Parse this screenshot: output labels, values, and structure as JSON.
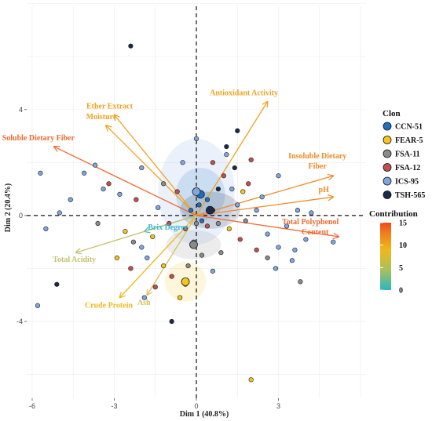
{
  "chart_data": {
    "type": "scatter",
    "subtype": "PCA biplot",
    "xlabel": "Dim 1 (40.8%)",
    "ylabel": "Dim 2 (20.4%)",
    "xlim": [
      -6.2,
      6.2
    ],
    "ylim": [
      -6.9,
      7.9
    ],
    "x_ticks": [
      -6,
      -3,
      0,
      3
    ],
    "y_ticks": [
      -4,
      0,
      4
    ],
    "grid": true,
    "legend": {
      "title": "Clon",
      "position": "right",
      "entries": [
        {
          "name": "CCN-51",
          "color": "#1f6fbf"
        },
        {
          "name": "FEAR-5",
          "color": "#f5c518"
        },
        {
          "name": "FSA-11",
          "color": "#8a8a8a"
        },
        {
          "name": "FSA-12",
          "color": "#c0504d"
        },
        {
          "name": "ICS-95",
          "color": "#7ea6e0"
        },
        {
          "name": "TSH-565",
          "color": "#1b2a49"
        }
      ]
    },
    "contribution_scale": {
      "title": "Contribution",
      "min": 0,
      "max": 15,
      "ticks": [
        0,
        5,
        10,
        15
      ],
      "colors": [
        "#2ab7c2",
        "#a9c05c",
        "#f0b81b",
        "#f07c1c",
        "#ef4a1c"
      ]
    },
    "variables": [
      {
        "label": "Antioxidant Activity",
        "x": 2.6,
        "y": 4.3,
        "contribution": 11,
        "color": "#f0a21f"
      },
      {
        "label": "Ether Extract",
        "x": -3.0,
        "y": 3.8,
        "contribution": 11,
        "color": "#f0a21f"
      },
      {
        "label": "Moisture",
        "x": -3.3,
        "y": 3.4,
        "contribution": 11,
        "color": "#f0a21f"
      },
      {
        "label": "Soluble Dietary Fiber",
        "x": -5.2,
        "y": 2.6,
        "contribution": 14,
        "color": "#ef6a30"
      },
      {
        "label": "Insoluble Dietary Fiber",
        "x": 5.0,
        "y": 1.5,
        "contribution": 12,
        "color": "#f08a25"
      },
      {
        "label": "pH",
        "x": 5.0,
        "y": 0.7,
        "contribution": 12,
        "color": "#f08a25"
      },
      {
        "label": "Total Polyphenol Content",
        "x": 5.2,
        "y": -0.8,
        "contribution": 14,
        "color": "#ef6a30"
      },
      {
        "label": "Brix Degree",
        "x": -1.9,
        "y": -0.6,
        "contribution": 1,
        "color": "#3cb8c8"
      },
      {
        "label": "Total Acidity",
        "x": -4.4,
        "y": -1.4,
        "contribution": 6,
        "color": "#c4c070"
      },
      {
        "label": "Crude Protein",
        "x": -2.8,
        "y": -3.1,
        "contribution": 10,
        "color": "#f0b81b"
      },
      {
        "label": "Ash",
        "x": -1.8,
        "y": -3.0,
        "contribution": 7,
        "color": "#d4c25a"
      }
    ],
    "ellipses": [
      {
        "clon": "CCN-51",
        "cx": 0.15,
        "cy": 0.8,
        "rx": 0.9,
        "ry": 1.0,
        "color": "#1f6fbf"
      },
      {
        "clon": "FEAR-5",
        "cx": -0.4,
        "cy": -2.5,
        "rx": 0.75,
        "ry": 0.75,
        "color": "#f5c518"
      },
      {
        "clon": "FSA-11",
        "cx": -0.1,
        "cy": -1.1,
        "rx": 1.0,
        "ry": 0.55,
        "color": "#8a8a8a"
      },
      {
        "clon": "ICS-95",
        "cx": 0.0,
        "cy": 0.9,
        "rx": 1.4,
        "ry": 2.0,
        "color": "#7ea6e0"
      },
      {
        "clon": "TSH-565",
        "cx": 0.5,
        "cy": 0.2,
        "rx": 1.1,
        "ry": 0.7,
        "color": "#1b2a49"
      }
    ],
    "points": [
      {
        "x": -2.4,
        "y": 6.4,
        "clon": "TSH-565"
      },
      {
        "x": 1.5,
        "y": 3.2,
        "clon": "TSH-565"
      },
      {
        "x": 1.1,
        "y": 2.3,
        "clon": "ICS-95"
      },
      {
        "x": 1.4,
        "y": 1.8,
        "clon": "TSH-565"
      },
      {
        "x": 1.0,
        "y": 1.5,
        "clon": "FSA-12"
      },
      {
        "x": 0.8,
        "y": 1.0,
        "clon": "TSH-565"
      },
      {
        "x": 1.9,
        "y": 1.2,
        "clon": "FSA-12"
      },
      {
        "x": 2.4,
        "y": 0.7,
        "clon": "ICS-95"
      },
      {
        "x": 3.0,
        "y": 1.5,
        "clon": "ICS-95"
      },
      {
        "x": 4.2,
        "y": 0.1,
        "clon": "ICS-95"
      },
      {
        "x": 5.0,
        "y": -1.0,
        "clon": "ICS-95"
      },
      {
        "x": 3.6,
        "y": -1.3,
        "clon": "ICS-95"
      },
      {
        "x": 3.0,
        "y": -1.2,
        "clon": "ICS-95"
      },
      {
        "x": 3.5,
        "y": -1.7,
        "clon": "ICS-95"
      },
      {
        "x": 3.8,
        "y": -2.5,
        "clon": "FSA-11"
      },
      {
        "x": 2.9,
        "y": -2.0,
        "clon": "ICS-95"
      },
      {
        "x": 2.2,
        "y": -1.3,
        "clon": "FSA-12"
      },
      {
        "x": 1.6,
        "y": -0.9,
        "clon": "FSA-12"
      },
      {
        "x": 1.2,
        "y": -0.5,
        "clon": "FEAR-5"
      },
      {
        "x": 0.8,
        "y": -0.3,
        "clon": "FSA-11"
      },
      {
        "x": 1.5,
        "y": 0.4,
        "clon": "ICS-95"
      },
      {
        "x": 2.2,
        "y": 0.2,
        "clon": "ICS-95"
      },
      {
        "x": 2.6,
        "y": -0.7,
        "clon": "ICS-95"
      },
      {
        "x": 1.8,
        "y": -0.2,
        "clon": "FSA-11"
      },
      {
        "x": 0.4,
        "y": 0.6,
        "clon": "CCN-51"
      },
      {
        "x": 0.1,
        "y": 0.4,
        "clon": "CCN-51"
      },
      {
        "x": -0.2,
        "y": 0.2,
        "clon": "CCN-51"
      },
      {
        "x": 0.2,
        "y": -0.2,
        "clon": "CCN-51"
      },
      {
        "x": 0.4,
        "y": -0.4,
        "clon": "FSA-12"
      },
      {
        "x": -0.4,
        "y": -0.5,
        "clon": "FSA-12"
      },
      {
        "x": -0.1,
        "y": -1.0,
        "clon": "FSA-11"
      },
      {
        "x": 0.2,
        "y": -1.5,
        "clon": "FSA-11"
      },
      {
        "x": -0.3,
        "y": -1.9,
        "clon": "FSA-11"
      },
      {
        "x": -0.4,
        "y": -2.6,
        "clon": "FEAR-5"
      },
      {
        "x": -0.6,
        "y": -3.1,
        "clon": "FEAR-5"
      },
      {
        "x": -0.9,
        "y": -2.3,
        "clon": "FSA-12"
      },
      {
        "x": -1.5,
        "y": -2.7,
        "clon": "FSA-12"
      },
      {
        "x": -1.9,
        "y": -3.1,
        "clon": "ICS-95"
      },
      {
        "x": -2.4,
        "y": -2.0,
        "clon": "FSA-12"
      },
      {
        "x": -2.9,
        "y": -1.6,
        "clon": "FEAR-5"
      },
      {
        "x": -2.0,
        "y": -1.2,
        "clon": "ICS-95"
      },
      {
        "x": -1.6,
        "y": -0.8,
        "clon": "FEAR-5"
      },
      {
        "x": -1.0,
        "y": -0.3,
        "clon": "FSA-12"
      },
      {
        "x": -1.4,
        "y": 0.3,
        "clon": "ICS-95"
      },
      {
        "x": -2.2,
        "y": 0.6,
        "clon": "FSA-12"
      },
      {
        "x": -2.8,
        "y": 0.8,
        "clon": "ICS-95"
      },
      {
        "x": -3.4,
        "y": 1.0,
        "clon": "ICS-95"
      },
      {
        "x": -4.1,
        "y": 1.6,
        "clon": "ICS-95"
      },
      {
        "x": -4.6,
        "y": 0.6,
        "clon": "ICS-95"
      },
      {
        "x": -5.0,
        "y": 0.1,
        "clon": "ICS-95"
      },
      {
        "x": -5.7,
        "y": 1.6,
        "clon": "ICS-95"
      },
      {
        "x": -5.5,
        "y": -0.5,
        "clon": "ICS-95"
      },
      {
        "x": -5.1,
        "y": -2.6,
        "clon": "TSH-565"
      },
      {
        "x": -5.8,
        "y": -3.4,
        "clon": "ICS-95"
      },
      {
        "x": -3.7,
        "y": 1.9,
        "clon": "ICS-95"
      },
      {
        "x": -2.0,
        "y": 1.8,
        "clon": "ICS-95"
      },
      {
        "x": -1.2,
        "y": 1.2,
        "clon": "FSA-11"
      },
      {
        "x": -0.7,
        "y": 0.9,
        "clon": "FSA-12"
      },
      {
        "x": -0.5,
        "y": 2.0,
        "clon": "ICS-95"
      },
      {
        "x": 0.0,
        "y": 2.9,
        "clon": "ICS-95"
      },
      {
        "x": 0.6,
        "y": 2.0,
        "clon": "FSA-12"
      },
      {
        "x": 1.3,
        "y": 1.0,
        "clon": "ICS-95"
      },
      {
        "x": -0.9,
        "y": -4.0,
        "clon": "TSH-565"
      },
      {
        "x": 2.0,
        "y": -6.2,
        "clon": "FEAR-5"
      },
      {
        "x": -2.3,
        "y": -1.0,
        "clon": "FSA-11"
      },
      {
        "x": -1.8,
        "y": -1.6,
        "clon": "ICS-95"
      },
      {
        "x": -1.2,
        "y": -1.9,
        "clon": "FEAR-5"
      },
      {
        "x": 0.6,
        "y": -2.1,
        "clon": "ICS-95"
      },
      {
        "x": 0.9,
        "y": -1.4,
        "clon": "FSA-11"
      },
      {
        "x": 2.6,
        "y": -1.6,
        "clon": "FSA-11"
      },
      {
        "x": 3.3,
        "y": -0.4,
        "clon": "ICS-95"
      },
      {
        "x": 4.0,
        "y": -0.9,
        "clon": "ICS-95"
      },
      {
        "x": 3.7,
        "y": 0.2,
        "clon": "ICS-95"
      },
      {
        "x": 2.0,
        "y": 2.1,
        "clon": "FSA-12"
      },
      {
        "x": 1.1,
        "y": 2.6,
        "clon": "TSH-565"
      },
      {
        "x": -3.2,
        "y": 1.2,
        "clon": "FSA-12"
      },
      {
        "x": -3.6,
        "y": -0.3,
        "clon": "FSA-11"
      },
      {
        "x": -2.6,
        "y": -0.6,
        "clon": "FEAR-5"
      },
      {
        "x": 0.0,
        "y": -0.3,
        "clon": "FSA-11"
      },
      {
        "x": 0.6,
        "y": 0.2,
        "clon": "TSH-565"
      },
      {
        "x": 1.7,
        "y": 0.9,
        "clon": "FEAR-5"
      }
    ]
  }
}
